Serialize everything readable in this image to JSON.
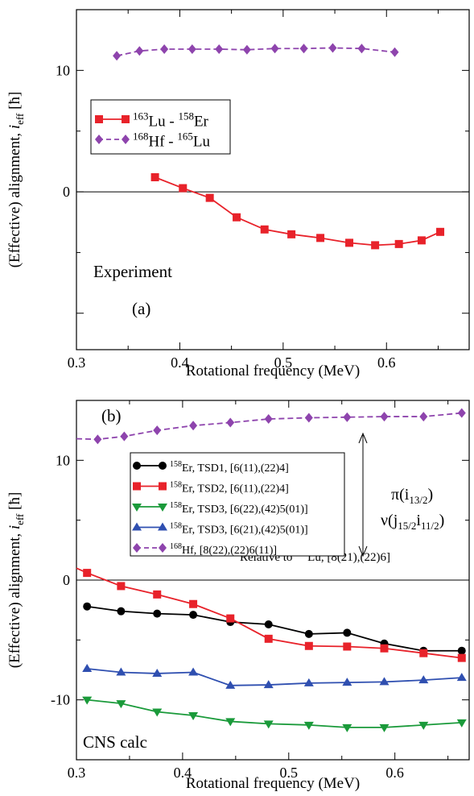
{
  "colors": {
    "lu_er": "#e8222a",
    "hf_lu": "#8e44ad",
    "tsd1": "#000000",
    "tsd2": "#e8222a",
    "tsd3a": "#1a9a3a",
    "tsd3b": "#2f4fb0",
    "hf_b": "#8e44ad"
  },
  "chart_data": [
    {
      "type": "line",
      "panel_label": "(a)",
      "annotation": "Experiment",
      "xlabel": "Rotational frequency (MeV)",
      "ylabel": "(Effective) alignment, i_eff [ħ]",
      "xlim": [
        0.3,
        0.68
      ],
      "ylim": [
        -13,
        15
      ],
      "xticks": [
        "0.3",
        "0.4",
        "0.5",
        "0.6"
      ],
      "yticks": [
        "0",
        "10"
      ],
      "legend_position": "upper-left",
      "series": [
        {
          "name": "163Lu - 158Er",
          "label_parts": [
            "163",
            "Lu - ",
            "158",
            "Er"
          ],
          "color_key": "lu_er",
          "marker": "square",
          "dash": "solid",
          "x": [
            0.376,
            0.403,
            0.429,
            0.455,
            0.482,
            0.508,
            0.536,
            0.564,
            0.589,
            0.612,
            0.634,
            0.652
          ],
          "y": [
            1.2,
            0.3,
            -0.5,
            -2.1,
            -3.1,
            -3.5,
            -3.8,
            -4.2,
            -4.4,
            -4.3,
            -4.0,
            -3.3
          ]
        },
        {
          "name": "168Hf - 165Lu",
          "label_parts": [
            "168",
            "Hf - ",
            "165",
            "Lu"
          ],
          "color_key": "hf_lu",
          "marker": "diamond",
          "dash": "dashed",
          "x": [
            0.339,
            0.361,
            0.385,
            0.412,
            0.438,
            0.465,
            0.492,
            0.52,
            0.548,
            0.576,
            0.608
          ],
          "y": [
            11.2,
            11.6,
            11.75,
            11.75,
            11.75,
            11.7,
            11.8,
            11.8,
            11.85,
            11.8,
            11.5
          ]
        }
      ]
    },
    {
      "type": "line",
      "panel_label": "(b)",
      "annotation": "CNS calc",
      "reference_label_parts": [
        "Relative to ",
        "163",
        "Lu, [8(21),(22)6]"
      ],
      "arrow_label_line1": "π(i13/2)",
      "arrow_label_line2": "ν(j15/2i11/2)",
      "xlabel": "Rotational frequency (MeV)",
      "ylabel": "(Effective) alignment, i_eff [ħ]",
      "xlim": [
        0.3,
        0.67
      ],
      "ylim": [
        -15,
        15
      ],
      "xticks": [
        "0.3",
        "0.4",
        "0.5",
        "0.6"
      ],
      "yticks": [
        "-10",
        "0",
        "10"
      ],
      "legend_position": "center",
      "series": [
        {
          "name": "158Er, TSD1, [6(11),(22)4]",
          "label_parts": [
            "158",
            "Er, TSD1, [6(11),(22)4]"
          ],
          "color_key": "tsd1",
          "marker": "circle",
          "dash": "solid",
          "x": [
            0.31,
            0.342,
            0.376,
            0.41,
            0.445,
            0.481,
            0.519,
            0.555,
            0.59,
            0.627,
            0.663
          ],
          "y": [
            -2.2,
            -2.6,
            -2.8,
            -2.9,
            -3.5,
            -3.7,
            -4.5,
            -4.4,
            -5.3,
            -5.9,
            -5.9
          ]
        },
        {
          "name": "158Er, TSD2, [6(11),(22)4]",
          "label_parts": [
            "158",
            "Er, TSD2, [6(11),(22)4]"
          ],
          "color_key": "tsd2",
          "marker": "square",
          "dash": "solid",
          "x": [
            0.3,
            0.31,
            0.342,
            0.376,
            0.41,
            0.445,
            0.481,
            0.519,
            0.555,
            0.59,
            0.627,
            0.663
          ],
          "y": [
            1.0,
            0.6,
            -0.5,
            -1.2,
            -2.0,
            -3.2,
            -4.9,
            -5.5,
            -5.55,
            -5.7,
            -6.1,
            -6.5
          ]
        },
        {
          "name": "158Er, TSD3, [6(22),(42)5(01)]",
          "label_parts": [
            "158",
            "Er, TSD3, [6(22),(42)5(01)]"
          ],
          "color_key": "tsd3a",
          "marker": "triangle-down",
          "dash": "solid",
          "x": [
            0.31,
            0.342,
            0.376,
            0.41,
            0.445,
            0.481,
            0.519,
            0.555,
            0.59,
            0.627,
            0.663
          ],
          "y": [
            -10.0,
            -10.3,
            -11.0,
            -11.3,
            -11.8,
            -12.0,
            -12.1,
            -12.3,
            -12.3,
            -12.1,
            -11.9
          ]
        },
        {
          "name": "158Er, TSD3, [6(21),(42)5(01)]",
          "label_parts": [
            "158",
            "Er, TSD3, [6(21),(42)5(01)]"
          ],
          "color_key": "tsd3b",
          "marker": "triangle-up",
          "dash": "solid",
          "x": [
            0.31,
            0.342,
            0.376,
            0.41,
            0.445,
            0.481,
            0.519,
            0.555,
            0.59,
            0.627,
            0.663
          ],
          "y": [
            -7.4,
            -7.7,
            -7.8,
            -7.7,
            -8.8,
            -8.75,
            -8.6,
            -8.55,
            -8.5,
            -8.35,
            -8.15
          ]
        },
        {
          "name": "168Hf, [8(22),(22)6(11)]",
          "label_parts": [
            "168",
            "Hf, [8(22),(22)6(11)]"
          ],
          "color_key": "hf_b",
          "marker": "diamond",
          "dash": "dashed",
          "x": [
            0.3,
            0.32,
            0.345,
            0.376,
            0.41,
            0.445,
            0.481,
            0.519,
            0.555,
            0.59,
            0.627,
            0.663
          ],
          "y": [
            11.8,
            11.75,
            12.0,
            12.5,
            12.9,
            13.15,
            13.45,
            13.55,
            13.6,
            13.65,
            13.65,
            13.95
          ]
        }
      ]
    }
  ]
}
